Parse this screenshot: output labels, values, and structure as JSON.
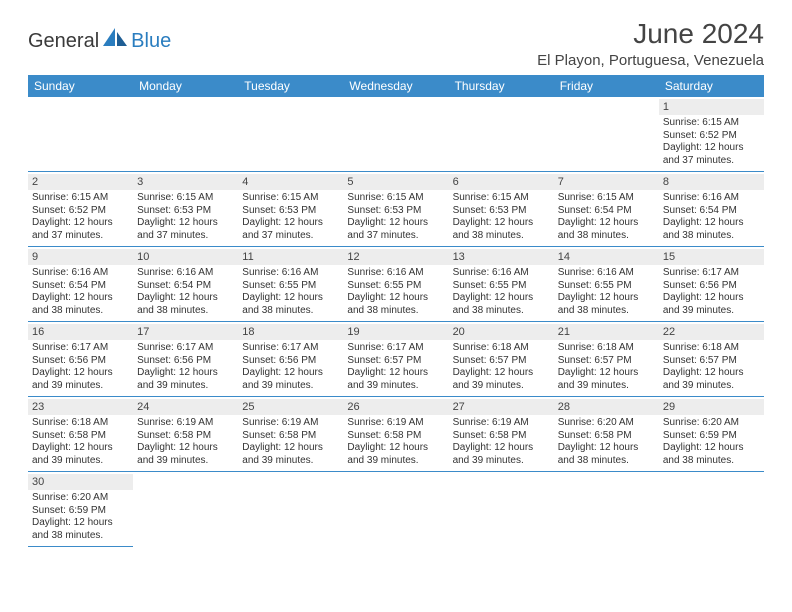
{
  "logo": {
    "text1": "General",
    "text2": "Blue"
  },
  "title": "June 2024",
  "subtitle": "El Playon, Portuguesa, Venezuela",
  "header_bg": "#3b8bc9",
  "header_fg": "#ffffff",
  "daynum_bg": "#ededed",
  "border_color": "#3b8bc9",
  "text_color": "#333333",
  "font_family": "Arial",
  "day_headers": [
    "Sunday",
    "Monday",
    "Tuesday",
    "Wednesday",
    "Thursday",
    "Friday",
    "Saturday"
  ],
  "weeks": [
    [
      null,
      null,
      null,
      null,
      null,
      null,
      {
        "n": "1",
        "sr": "6:15 AM",
        "ss": "6:52 PM",
        "dl": "12 hours and 37 minutes."
      }
    ],
    [
      {
        "n": "2",
        "sr": "6:15 AM",
        "ss": "6:52 PM",
        "dl": "12 hours and 37 minutes."
      },
      {
        "n": "3",
        "sr": "6:15 AM",
        "ss": "6:53 PM",
        "dl": "12 hours and 37 minutes."
      },
      {
        "n": "4",
        "sr": "6:15 AM",
        "ss": "6:53 PM",
        "dl": "12 hours and 37 minutes."
      },
      {
        "n": "5",
        "sr": "6:15 AM",
        "ss": "6:53 PM",
        "dl": "12 hours and 37 minutes."
      },
      {
        "n": "6",
        "sr": "6:15 AM",
        "ss": "6:53 PM",
        "dl": "12 hours and 38 minutes."
      },
      {
        "n": "7",
        "sr": "6:15 AM",
        "ss": "6:54 PM",
        "dl": "12 hours and 38 minutes."
      },
      {
        "n": "8",
        "sr": "6:16 AM",
        "ss": "6:54 PM",
        "dl": "12 hours and 38 minutes."
      }
    ],
    [
      {
        "n": "9",
        "sr": "6:16 AM",
        "ss": "6:54 PM",
        "dl": "12 hours and 38 minutes."
      },
      {
        "n": "10",
        "sr": "6:16 AM",
        "ss": "6:54 PM",
        "dl": "12 hours and 38 minutes."
      },
      {
        "n": "11",
        "sr": "6:16 AM",
        "ss": "6:55 PM",
        "dl": "12 hours and 38 minutes."
      },
      {
        "n": "12",
        "sr": "6:16 AM",
        "ss": "6:55 PM",
        "dl": "12 hours and 38 minutes."
      },
      {
        "n": "13",
        "sr": "6:16 AM",
        "ss": "6:55 PM",
        "dl": "12 hours and 38 minutes."
      },
      {
        "n": "14",
        "sr": "6:16 AM",
        "ss": "6:55 PM",
        "dl": "12 hours and 38 minutes."
      },
      {
        "n": "15",
        "sr": "6:17 AM",
        "ss": "6:56 PM",
        "dl": "12 hours and 39 minutes."
      }
    ],
    [
      {
        "n": "16",
        "sr": "6:17 AM",
        "ss": "6:56 PM",
        "dl": "12 hours and 39 minutes."
      },
      {
        "n": "17",
        "sr": "6:17 AM",
        "ss": "6:56 PM",
        "dl": "12 hours and 39 minutes."
      },
      {
        "n": "18",
        "sr": "6:17 AM",
        "ss": "6:56 PM",
        "dl": "12 hours and 39 minutes."
      },
      {
        "n": "19",
        "sr": "6:17 AM",
        "ss": "6:57 PM",
        "dl": "12 hours and 39 minutes."
      },
      {
        "n": "20",
        "sr": "6:18 AM",
        "ss": "6:57 PM",
        "dl": "12 hours and 39 minutes."
      },
      {
        "n": "21",
        "sr": "6:18 AM",
        "ss": "6:57 PM",
        "dl": "12 hours and 39 minutes."
      },
      {
        "n": "22",
        "sr": "6:18 AM",
        "ss": "6:57 PM",
        "dl": "12 hours and 39 minutes."
      }
    ],
    [
      {
        "n": "23",
        "sr": "6:18 AM",
        "ss": "6:58 PM",
        "dl": "12 hours and 39 minutes."
      },
      {
        "n": "24",
        "sr": "6:19 AM",
        "ss": "6:58 PM",
        "dl": "12 hours and 39 minutes."
      },
      {
        "n": "25",
        "sr": "6:19 AM",
        "ss": "6:58 PM",
        "dl": "12 hours and 39 minutes."
      },
      {
        "n": "26",
        "sr": "6:19 AM",
        "ss": "6:58 PM",
        "dl": "12 hours and 39 minutes."
      },
      {
        "n": "27",
        "sr": "6:19 AM",
        "ss": "6:58 PM",
        "dl": "12 hours and 39 minutes."
      },
      {
        "n": "28",
        "sr": "6:20 AM",
        "ss": "6:58 PM",
        "dl": "12 hours and 38 minutes."
      },
      {
        "n": "29",
        "sr": "6:20 AM",
        "ss": "6:59 PM",
        "dl": "12 hours and 38 minutes."
      }
    ],
    [
      {
        "n": "30",
        "sr": "6:20 AM",
        "ss": "6:59 PM",
        "dl": "12 hours and 38 minutes."
      },
      null,
      null,
      null,
      null,
      null,
      null
    ]
  ],
  "labels": {
    "sunrise": "Sunrise:",
    "sunset": "Sunset:",
    "daylight": "Daylight:"
  }
}
